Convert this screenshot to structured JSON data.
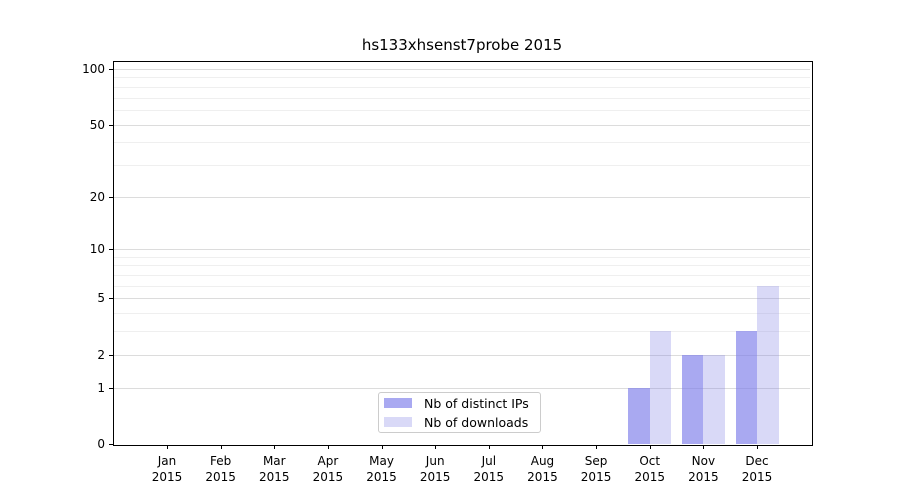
{
  "chart_data": {
    "type": "bar",
    "title": "hs133xhsenst7probe 2015",
    "x_year": "2015",
    "categories": [
      "Jan",
      "Feb",
      "Mar",
      "Apr",
      "May",
      "Jun",
      "Jul",
      "Aug",
      "Sep",
      "Oct",
      "Nov",
      "Dec"
    ],
    "series": [
      {
        "name": "Nb of distinct IPs",
        "color": "#a9a9f1",
        "bar_rgba": "rgba(125,125,234,0.66)",
        "values": [
          0,
          0,
          0,
          0,
          0,
          0,
          0,
          0,
          0,
          1,
          2,
          3
        ]
      },
      {
        "name": "Nb of downloads",
        "color": "#d9d9f7",
        "bar_rgba": "rgba(128,128,228,0.30)",
        "values": [
          0,
          0,
          0,
          0,
          0,
          0,
          0,
          0,
          0,
          3,
          2,
          6
        ]
      }
    ],
    "y_ticks": [
      0,
      1,
      2,
      5,
      10,
      20,
      50,
      100
    ],
    "y_minor_gridlines": [
      3,
      4,
      6,
      7,
      8,
      9,
      30,
      40,
      60,
      70,
      80,
      90
    ],
    "y_scale": "log1p",
    "ylim": [
      0,
      110
    ],
    "grid": true,
    "legend_position": "lower center",
    "xlabel": "",
    "ylabel": ""
  },
  "colors": {
    "background": "#ffffff",
    "axis": "#000000",
    "grid_major": "#dcdcdc",
    "grid_minor": "#efefef",
    "legend_border": "#cccccc"
  }
}
